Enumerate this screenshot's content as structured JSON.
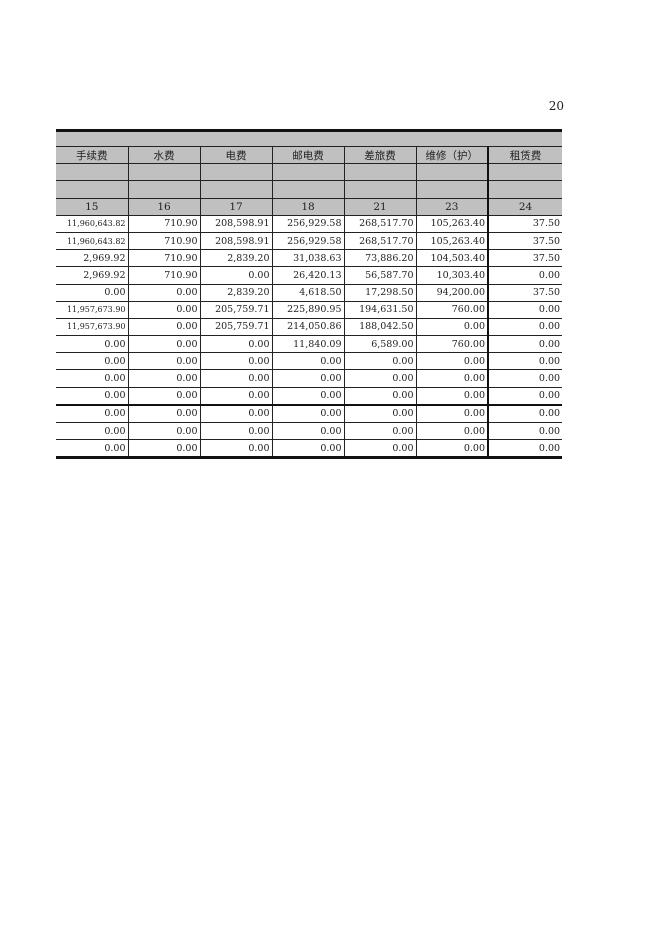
{
  "page_number": "20",
  "headers": [
    "手续费",
    "水费",
    "电费",
    "邮电费",
    "差旅费",
    "维修（护）",
    "租赁费"
  ],
  "codes": [
    "15",
    "16",
    "17",
    "18",
    "21",
    "23",
    "24"
  ],
  "rows": [
    [
      "11,960,643.82",
      "710.90",
      "208,598.91",
      "256,929.58",
      "268,517.70",
      "105,263.40",
      "37.50"
    ],
    [
      "11,960,643.82",
      "710.90",
      "208,598.91",
      "256,929.58",
      "268,517.70",
      "105,263.40",
      "37.50"
    ],
    [
      "2,969.92",
      "710.90",
      "2,839.20",
      "31,038.63",
      "73,886.20",
      "104,503.40",
      "37.50"
    ],
    [
      "2,969.92",
      "710.90",
      "0.00",
      "26,420.13",
      "56,587.70",
      "10,303.40",
      "0.00"
    ],
    [
      "0.00",
      "0.00",
      "2,839.20",
      "4,618.50",
      "17,298.50",
      "94,200.00",
      "37.50"
    ],
    [
      "11,957,673.90",
      "0.00",
      "205,759.71",
      "225,890.95",
      "194,631.50",
      "760.00",
      "0.00"
    ],
    [
      "11,957,673.90",
      "0.00",
      "205,759.71",
      "214,050.86",
      "188,042.50",
      "0.00",
      "0.00"
    ],
    [
      "0.00",
      "0.00",
      "0.00",
      "11,840.09",
      "6,589.00",
      "760.00",
      "0.00"
    ],
    [
      "0.00",
      "0.00",
      "0.00",
      "0.00",
      "0.00",
      "0.00",
      "0.00"
    ],
    [
      "0.00",
      "0.00",
      "0.00",
      "0.00",
      "0.00",
      "0.00",
      "0.00"
    ],
    [
      "0.00",
      "0.00",
      "0.00",
      "0.00",
      "0.00",
      "0.00",
      "0.00"
    ],
    [
      "0.00",
      "0.00",
      "0.00",
      "0.00",
      "0.00",
      "0.00",
      "0.00"
    ],
    [
      "0.00",
      "0.00",
      "0.00",
      "0.00",
      "0.00",
      "0.00",
      "0.00"
    ],
    [
      "0.00",
      "0.00",
      "0.00",
      "0.00",
      "0.00",
      "0.00",
      "0.00"
    ]
  ]
}
